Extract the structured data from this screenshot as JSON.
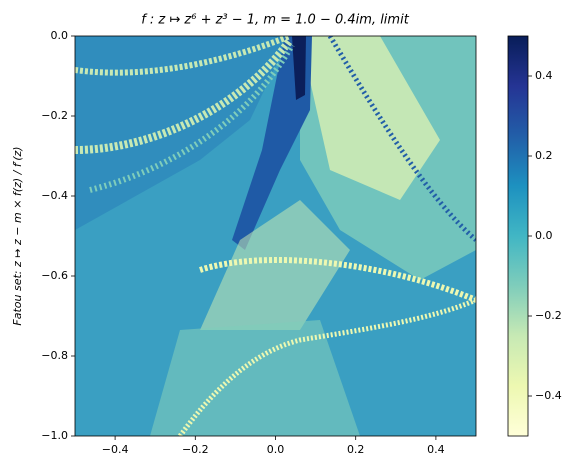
{
  "chart_data": {
    "type": "image",
    "title": "f : z ↦ z⁶ + z³ − 1, m = 1.0 − 0.4im, limit",
    "y_label": "Fatou set: z ↦ z − m × f(z) / f′(z)",
    "xlim": [
      -0.5,
      0.5
    ],
    "xticks": [
      {
        "value": -0.4,
        "label": "−0.4"
      },
      {
        "value": -0.2,
        "label": "−0.2"
      },
      {
        "value": 0,
        "label": "0.0"
      },
      0.2,
      0.4
    ],
    "ylim": [
      -1,
      0
    ],
    "yticks": [
      {
        "value": 0,
        "label": "0.0"
      },
      {
        "value": -0.2,
        "label": "−0.2"
      },
      {
        "value": -0.4,
        "label": "−0.4"
      },
      {
        "value": -0.6,
        "label": "−0.6"
      },
      {
        "value": -0.8,
        "label": "−0.8"
      },
      {
        "value": -1,
        "label": "−1.0"
      }
    ],
    "colorbar": {
      "colormap": "YlGnBu",
      "lim": [
        -0.5,
        0.5
      ],
      "ticks": [
        {
          "value": -0.4,
          "label": "−0.4"
        },
        {
          "value": -0.2,
          "label": "−0.2"
        },
        {
          "value": 0,
          "label": "0.0"
        },
        0.2,
        0.4
      ]
    }
  }
}
